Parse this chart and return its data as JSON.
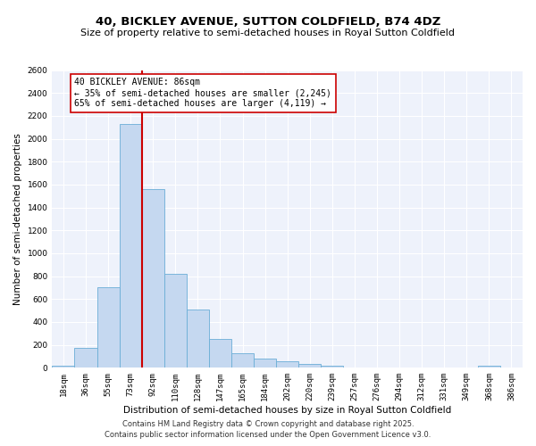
{
  "title_line1": "40, BICKLEY AVENUE, SUTTON COLDFIELD, B74 4DZ",
  "title_line2": "Size of property relative to semi-detached houses in Royal Sutton Coldfield",
  "xlabel": "Distribution of semi-detached houses by size in Royal Sutton Coldfield",
  "ylabel": "Number of semi-detached properties",
  "categories": [
    "18sqm",
    "36sqm",
    "55sqm",
    "73sqm",
    "92sqm",
    "110sqm",
    "128sqm",
    "147sqm",
    "165sqm",
    "184sqm",
    "202sqm",
    "220sqm",
    "239sqm",
    "257sqm",
    "276sqm",
    "294sqm",
    "312sqm",
    "331sqm",
    "349sqm",
    "368sqm",
    "386sqm"
  ],
  "values": [
    15,
    175,
    700,
    2130,
    1560,
    820,
    510,
    250,
    125,
    80,
    60,
    30,
    15,
    0,
    0,
    0,
    0,
    0,
    0,
    15,
    0
  ],
  "bar_color": "#c5d8f0",
  "bar_edge_color": "#6baed6",
  "vline_x": 3.5,
  "annotation_title": "40 BICKLEY AVENUE: 86sqm",
  "annotation_line1": "← 35% of semi-detached houses are smaller (2,245)",
  "annotation_line2": "65% of semi-detached houses are larger (4,119) →",
  "vline_color": "#cc0000",
  "box_edge_color": "#cc0000",
  "ylim": [
    0,
    2600
  ],
  "yticks": [
    0,
    200,
    400,
    600,
    800,
    1000,
    1200,
    1400,
    1600,
    1800,
    2000,
    2200,
    2400,
    2600
  ],
  "background_color": "#eef2fb",
  "grid_color": "#ffffff",
  "footer_line1": "Contains HM Land Registry data © Crown copyright and database right 2025.",
  "footer_line2": "Contains public sector information licensed under the Open Government Licence v3.0.",
  "title_fontsize": 9.5,
  "subtitle_fontsize": 8,
  "ylabel_fontsize": 7.5,
  "xlabel_fontsize": 7.5,
  "tick_fontsize": 6.5,
  "annotation_fontsize": 7,
  "footer_fontsize": 6
}
